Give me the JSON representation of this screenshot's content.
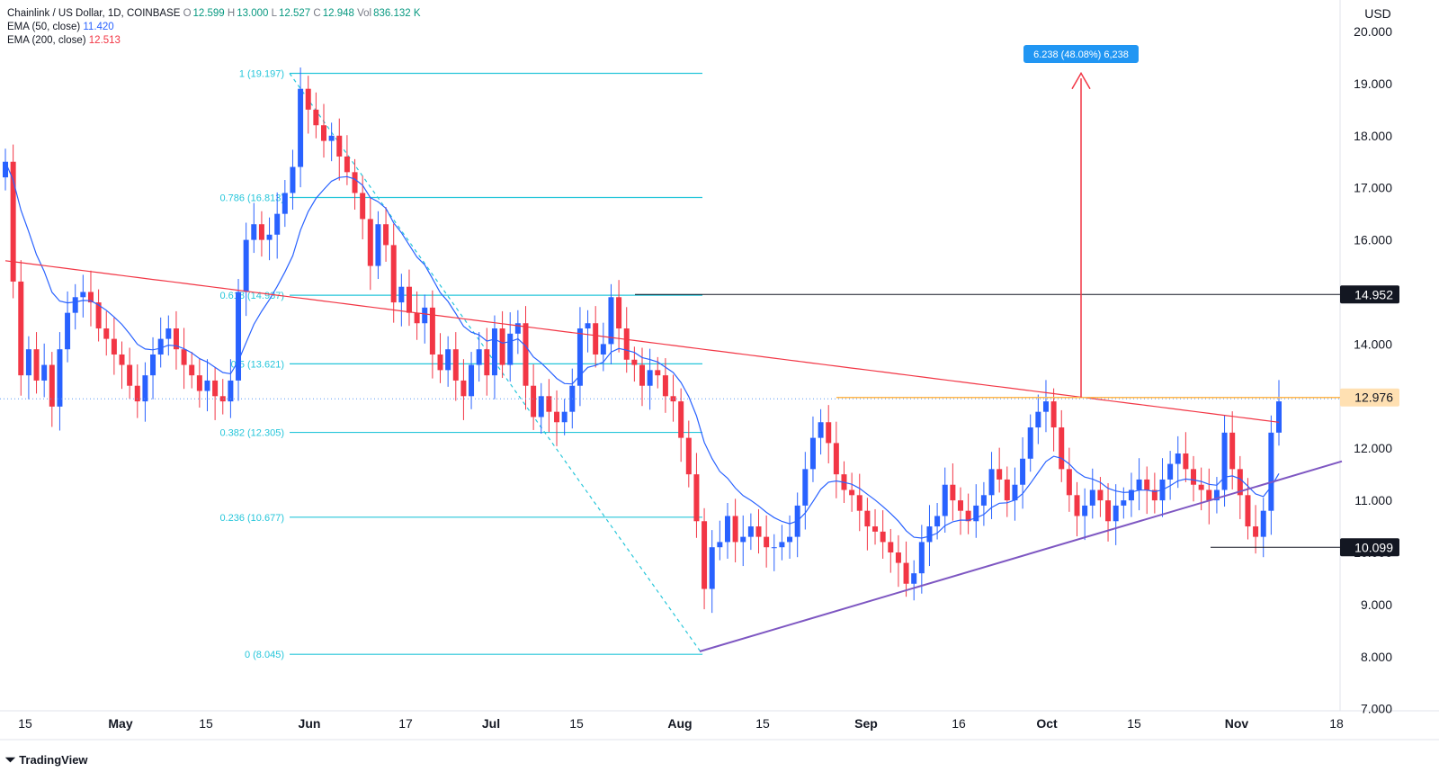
{
  "header": {
    "symbol": "Chainlink / US Dollar, 1D, COINBASE",
    "o_label": "O",
    "o": "12.599",
    "h_label": "H",
    "h": "13.000",
    "l_label": "L",
    "l": "12.527",
    "c_label": "C",
    "c": "12.948",
    "vol_label": "Vol",
    "vol": "836.132 K",
    "ema50_label": "EMA (50, close)",
    "ema50": "11.420",
    "ema200_label": "EMA (200, close)",
    "ema200": "12.513"
  },
  "currency": "USD",
  "brand": "TradingView",
  "colors": {
    "up": "#2962ff",
    "down": "#f23645",
    "ema50": "#2962ff",
    "ema200": "#f23645",
    "fib": "#26c6da",
    "trend": "#7e57c2",
    "resistance": "#ffb74d",
    "measure": "#2196f3"
  },
  "annotations": {
    "measure_label": "6.238 (48.08%) 6,238",
    "price_tags": [
      "14.952",
      "12.976",
      "10.099"
    ]
  },
  "chart_data": {
    "type": "candlestick",
    "title": "Chainlink / US Dollar, 1D, COINBASE",
    "ylim": [
      7,
      20.5
    ],
    "y_ticks": [
      "20.000",
      "19.000",
      "18.000",
      "17.000",
      "16.000",
      "15.000",
      "14.000",
      "13.000",
      "12.000",
      "11.000",
      "10.000",
      "9.000",
      "8.000",
      "7.000"
    ],
    "x_ticks": [
      "15",
      "May",
      "15",
      "Jun",
      "17",
      "Jul",
      "15",
      "Aug",
      "15",
      "Sep",
      "16",
      "Oct",
      "15",
      "Nov",
      "18"
    ],
    "fib_levels": [
      {
        "label": "1 (19.197)",
        "value": 19.197
      },
      {
        "label": "0.786 (16.813)",
        "value": 16.813
      },
      {
        "label": "0.618 (14.937)",
        "value": 14.937
      },
      {
        "label": "0.5 (13.621)",
        "value": 13.621
      },
      {
        "label": "0.382 (12.305)",
        "value": 12.305
      },
      {
        "label": "0.236 (10.677)",
        "value": 10.677
      },
      {
        "label": "0 (8.045)",
        "value": 8.045
      }
    ],
    "horizontal_levels": [
      14.952,
      12.976,
      10.099
    ],
    "current_price": 12.948,
    "close_series": [
      17.5,
      15.2,
      13.4,
      13.9,
      13.3,
      13.6,
      12.8,
      13.9,
      14.6,
      14.9,
      15.0,
      14.8,
      14.3,
      14.1,
      13.8,
      13.6,
      13.2,
      12.9,
      13.4,
      13.8,
      14.1,
      14.3,
      13.9,
      13.6,
      13.4,
      13.1,
      13.3,
      13.0,
      12.9,
      13.3,
      15.0,
      16.0,
      16.3,
      16.0,
      16.1,
      16.5,
      16.9,
      17.4,
      18.9,
      18.5,
      18.2,
      17.9,
      18.0,
      17.6,
      17.3,
      16.9,
      16.4,
      15.5,
      16.3,
      15.9,
      14.8,
      15.1,
      14.6,
      14.4,
      14.7,
      13.8,
      13.5,
      13.9,
      13.3,
      13.0,
      13.6,
      13.9,
      13.4,
      14.3,
      13.6,
      14.2,
      14.4,
      13.2,
      12.6,
      13.0,
      12.7,
      12.5,
      12.7,
      13.2,
      14.3,
      14.4,
      13.8,
      14.0,
      14.9,
      14.3,
      13.7,
      13.6,
      13.2,
      13.5,
      13.4,
      13.0,
      12.9,
      12.2,
      11.5,
      10.6,
      9.3,
      10.1,
      10.2,
      10.7,
      10.2,
      10.3,
      10.5,
      10.3,
      10.1,
      10.1,
      10.2,
      10.3,
      10.9,
      11.6,
      12.2,
      12.5,
      12.1,
      11.5,
      11.2,
      11.1,
      10.8,
      10.5,
      10.4,
      10.2,
      10.0,
      9.8,
      9.4,
      9.6,
      10.2,
      10.5,
      10.7,
      11.3,
      11.0,
      10.8,
      10.6,
      10.9,
      11.1,
      11.6,
      11.4,
      11.0,
      11.3,
      11.8,
      12.4,
      12.7,
      12.9,
      12.4,
      11.6,
      11.1,
      10.7,
      10.9,
      11.2,
      11.0,
      10.6,
      10.9,
      11.0,
      11.2,
      11.4,
      11.2,
      11.0,
      11.4,
      11.7,
      11.9,
      11.6,
      11.3,
      11.2,
      11.0,
      11.2,
      12.3,
      11.6,
      11.1,
      10.5,
      10.3,
      10.8,
      12.3,
      12.9
    ]
  }
}
